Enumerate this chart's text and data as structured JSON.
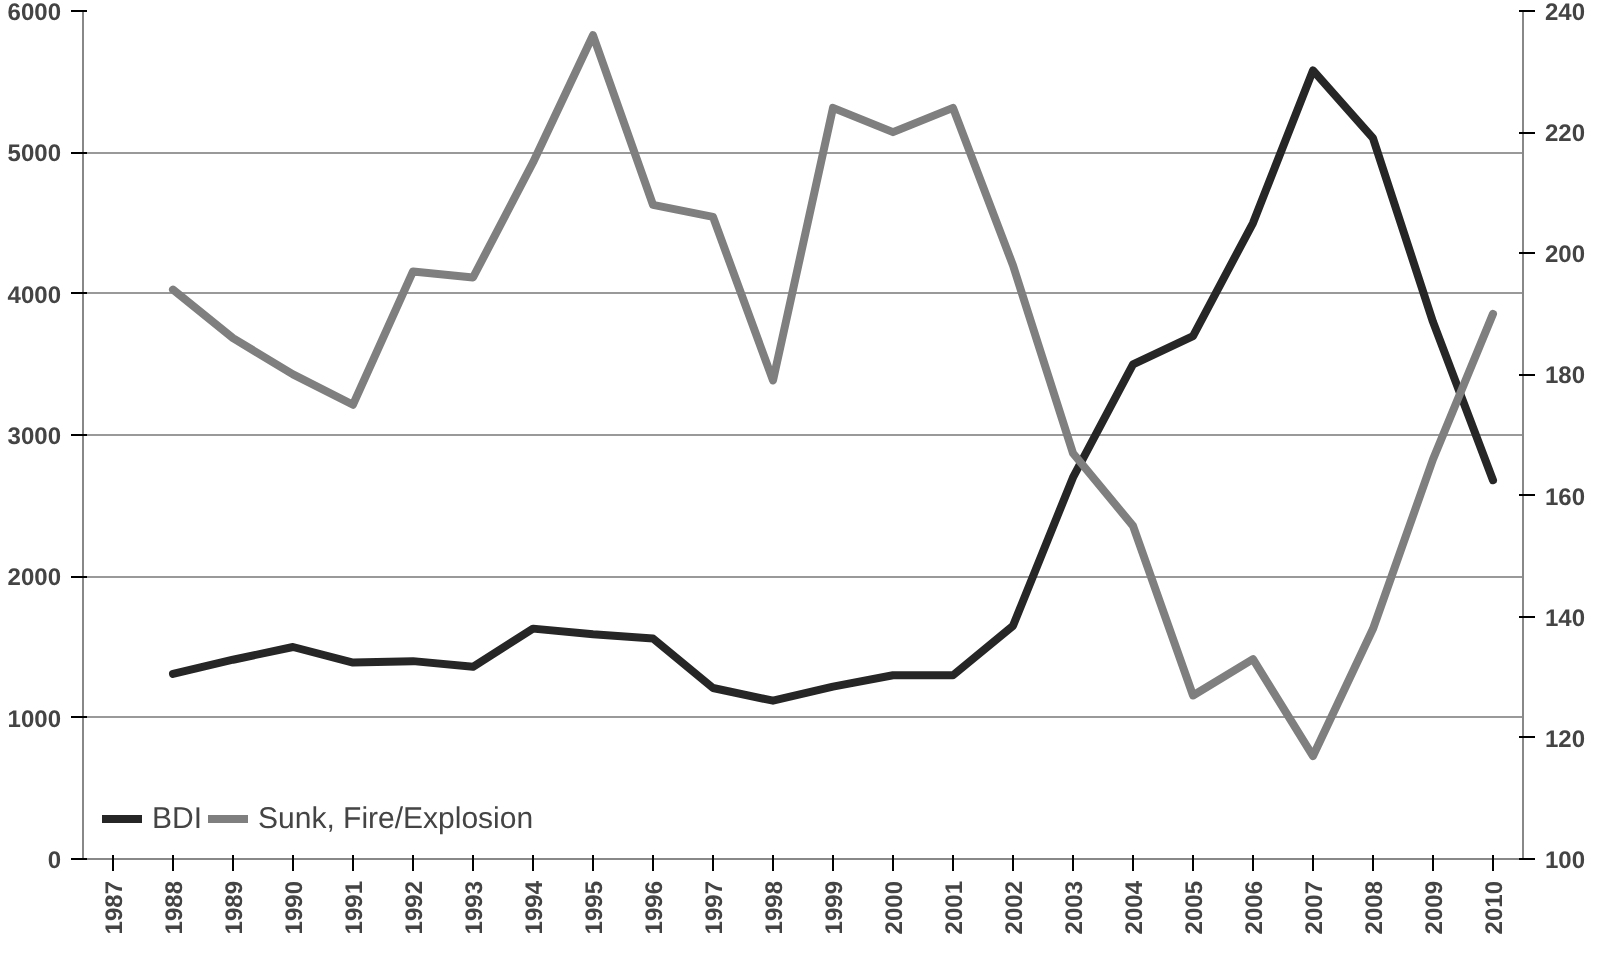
{
  "chart_data": {
    "type": "line",
    "categories": [
      "1987",
      "1988",
      "1989",
      "1990",
      "1991",
      "1992",
      "1993",
      "1994",
      "1995",
      "1996",
      "1997",
      "1998",
      "1999",
      "2000",
      "2001",
      "2002",
      "2003",
      "2004",
      "2005",
      "2006",
      "2007",
      "2008",
      "2009",
      "2010"
    ],
    "series": [
      {
        "name": "BDI",
        "color": "#262626",
        "values": [
          null,
          1310,
          1410,
          1500,
          1390,
          1400,
          1360,
          1630,
          1590,
          1560,
          1210,
          1120,
          1220,
          1300,
          1300,
          1650,
          2700,
          3500,
          3700,
          4500,
          5580,
          5100,
          3800,
          2680
        ]
      },
      {
        "name": "Sunk, Fire/Explosion",
        "color": "#7f7f7f",
        "axis": "y2",
        "values": [
          null,
          194,
          186,
          180,
          175,
          197,
          196,
          215,
          236,
          208,
          206,
          179,
          224,
          220,
          224,
          198,
          167,
          155,
          127,
          133,
          117,
          138,
          166,
          190
        ]
      }
    ],
    "ylim": [
      0,
      6000
    ],
    "yticks": [
      0,
      1000,
      2000,
      3000,
      4000,
      5000,
      6000
    ],
    "y2lim": [
      100,
      240
    ],
    "y2ticks": [
      100,
      120,
      140,
      160,
      180,
      200,
      220,
      240
    ],
    "grid": "y",
    "legend": "bottom left",
    "line_style": "solid"
  }
}
